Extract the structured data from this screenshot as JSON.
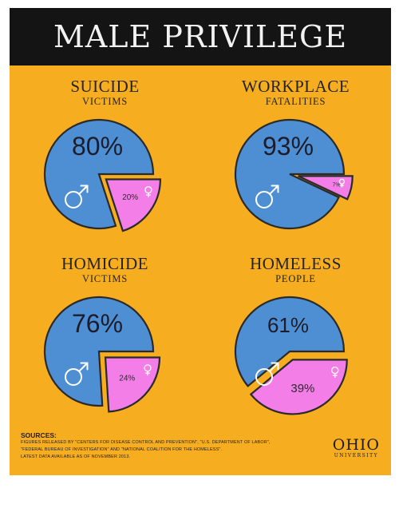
{
  "title": "MALE PRIVILEGE",
  "colors": {
    "background": "#f7ad20",
    "male": "#4e8fd4",
    "female": "#f47ee8",
    "outline": "#2a2a2a",
    "title_bar": "#141414"
  },
  "icons": {
    "male": "male-symbol-icon",
    "female": "female-symbol-icon"
  },
  "chart_data": [
    {
      "type": "pie",
      "title": "SUICIDE",
      "subtitle": "VICTIMS",
      "male_label": "80%",
      "female_label": "20%",
      "series": [
        {
          "values": [
            80,
            20
          ]
        }
      ]
    },
    {
      "type": "pie",
      "title": "WORKPLACE",
      "subtitle": "FATALITIES",
      "male_label": "93%",
      "female_label": "7%",
      "series": [
        {
          "values": [
            93,
            7
          ]
        }
      ]
    },
    {
      "type": "pie",
      "title": "HOMICIDE",
      "subtitle": "VICTIMS",
      "male_label": "76%",
      "female_label": "24%",
      "series": [
        {
          "values": [
            76,
            24
          ]
        }
      ]
    },
    {
      "type": "pie",
      "title": "HOMELESS",
      "subtitle": "PEOPLE",
      "male_label": "61%",
      "female_label": "39%",
      "series": [
        {
          "values": [
            61,
            39
          ]
        }
      ]
    }
  ],
  "sources": {
    "heading": "SOURCES:",
    "line1": "FIGURES RELEASED BY \"CENTERS FOR DISEASE CONTROL AND PREVENTION\", \"U.S. DEPARTMENT OF LABOR\",",
    "line2": "\"FEDERAL BUREAU OF INVESTIGATION\" AND \"NATIONAL COALITION FOR THE HOMELESS\".",
    "line3": "LATEST DATA AVAILABLE AS OF NOVEMBER 2013."
  },
  "logo": {
    "name": "OHIO",
    "sub": "UNIVERSITY"
  }
}
